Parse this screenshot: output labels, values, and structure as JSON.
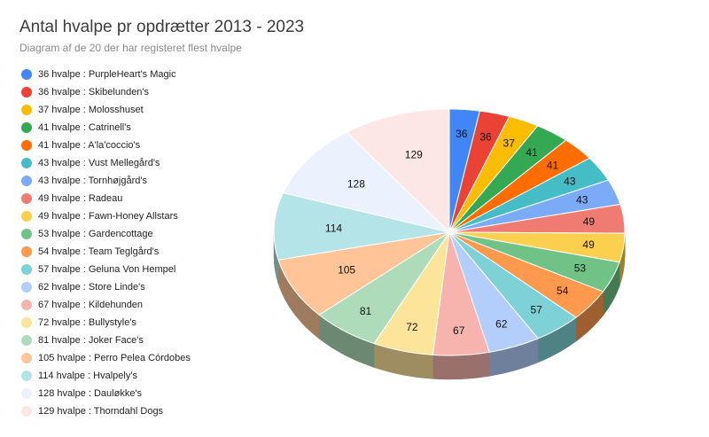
{
  "chart_data": {
    "type": "pie",
    "title": "Antal hvalpe pr opdrætter 2013 - 2023",
    "subtitle": "Diagram af de 20 der har registeret flest hvalpe",
    "legend_position": "left",
    "slices": [
      {
        "label": "36 hvalpe : PurpleHeart's Magic",
        "value": 36,
        "color": "#4285f4"
      },
      {
        "label": "36 hvalpe : Skibelunden's",
        "value": 36,
        "color": "#ea4335"
      },
      {
        "label": "37 hvalpe : Molosshuset",
        "value": 37,
        "color": "#fbbc04"
      },
      {
        "label": "41 hvalpe : Catrinell's",
        "value": 41,
        "color": "#34a853"
      },
      {
        "label": "41 hvalpe : A'la'coccio's",
        "value": 41,
        "color": "#ff6d01"
      },
      {
        "label": "43 hvalpe : Vust Mellegård's",
        "value": 43,
        "color": "#46bdc6"
      },
      {
        "label": "43 hvalpe : Tornhøjgård's",
        "value": 43,
        "color": "#7baaf7"
      },
      {
        "label": "49 hvalpe : Radeau",
        "value": 49,
        "color": "#f07b72"
      },
      {
        "label": "49 hvalpe : Fawn-Honey Allstars",
        "value": 49,
        "color": "#fcd04f"
      },
      {
        "label": "53 hvalpe : Gardencottage",
        "value": 53,
        "color": "#71c287"
      },
      {
        "label": "54 hvalpe : Team Teglgård's",
        "value": 54,
        "color": "#ff994d"
      },
      {
        "label": "57 hvalpe : Geluna Von Hempel",
        "value": 57,
        "color": "#7ed1d7"
      },
      {
        "label": "62 hvalpe : Store Linde's",
        "value": 62,
        "color": "#b3cefb"
      },
      {
        "label": "67 hvalpe : Kildehunden",
        "value": 67,
        "color": "#f7b4ae"
      },
      {
        "label": "72 hvalpe : Bullystyle's",
        "value": 72,
        "color": "#fde49b"
      },
      {
        "label": "81 hvalpe : Joker Face's",
        "value": 81,
        "color": "#aedcba"
      },
      {
        "label": "105 hvalpe : Perro Pelea Córdobes",
        "value": 105,
        "color": "#ffc599"
      },
      {
        "label": "114 hvalpe : Hvalpely's",
        "value": 114,
        "color": "#b5e4e8"
      },
      {
        "label": "128 hvalpe : Dauløkke's",
        "value": 128,
        "color": "#ecf2fd"
      },
      {
        "label": "129 hvalpe : Thorndahl Dogs",
        "value": 129,
        "color": "#fde7e6"
      }
    ]
  }
}
